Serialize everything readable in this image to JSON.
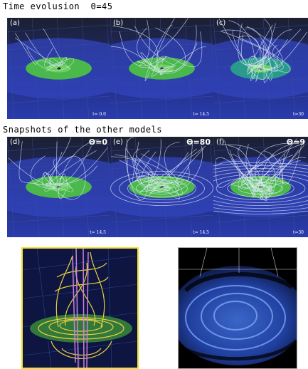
{
  "header": {
    "title": "Time evolusion  Θ=45"
  },
  "row1": [
    {
      "label": "(a)",
      "time": "t= 0.0"
    },
    {
      "label": "(b)",
      "time": "t= 14.5"
    },
    {
      "label": "(c)",
      "time": "t=30"
    }
  ],
  "section2": {
    "title": "Snapshots of the other models"
  },
  "row2": [
    {
      "label": "(d)",
      "angle": "Θ=0",
      "time": "t= 14.5"
    },
    {
      "label": "(e)",
      "angle": "Θ=80",
      "time": "t= 14.5"
    },
    {
      "label": "(f)",
      "angle": "Θ=9",
      "time": "t=30"
    }
  ]
}
